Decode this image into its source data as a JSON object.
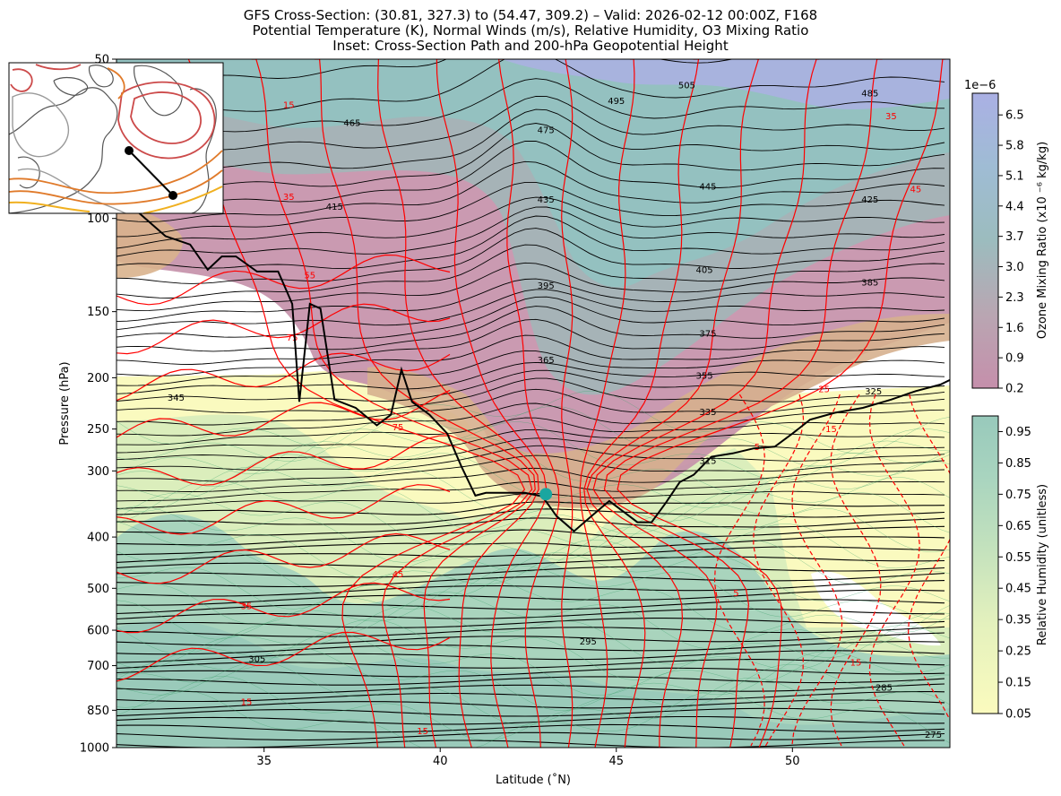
{
  "chart_data": {
    "type": "cross-section",
    "title_lines": [
      "GFS Cross-Section: (30.81, 327.3) to (54.47, 309.2) – Valid: 2026-02-12 00:00Z, F168",
      "Potential Temperature (K), Normal Winds (m/s), Relative Humidity, O3 Mixing Ratio",
      "Inset: Cross-Section Path and 200-hPa Geopotential Height"
    ],
    "xlabel": "Latitude (˚N)",
    "ylabel": "Pressure (hPa)",
    "xlim": [
      30.81,
      54.47
    ],
    "ylim": [
      1000,
      50
    ],
    "y_scale": "log",
    "x_ticks": [
      35,
      40,
      45,
      50
    ],
    "y_ticks": [
      1000,
      850,
      700,
      600,
      500,
      400,
      300,
      250,
      200,
      150,
      100,
      50
    ],
    "theta_labels": [
      {
        "value": "505",
        "lat": 47.0,
        "p": 56
      },
      {
        "value": "495",
        "lat": 45.0,
        "p": 60
      },
      {
        "value": "485",
        "lat": 52.2,
        "p": 58
      },
      {
        "value": "475",
        "lat": 43.0,
        "p": 68
      },
      {
        "value": "465",
        "lat": 37.5,
        "p": 66
      },
      {
        "value": "445",
        "lat": 47.6,
        "p": 87
      },
      {
        "value": "435",
        "lat": 43.0,
        "p": 92
      },
      {
        "value": "425",
        "lat": 52.2,
        "p": 92
      },
      {
        "value": "415",
        "lat": 37.0,
        "p": 95
      },
      {
        "value": "405",
        "lat": 47.5,
        "p": 125
      },
      {
        "value": "395",
        "lat": 43.0,
        "p": 134
      },
      {
        "value": "385",
        "lat": 52.2,
        "p": 132
      },
      {
        "value": "375",
        "lat": 47.6,
        "p": 165
      },
      {
        "value": "365",
        "lat": 43.0,
        "p": 185
      },
      {
        "value": "355",
        "lat": 47.5,
        "p": 198
      },
      {
        "value": "345",
        "lat": 32.5,
        "p": 218
      },
      {
        "value": "335",
        "lat": 47.6,
        "p": 232
      },
      {
        "value": "325",
        "lat": 52.3,
        "p": 212
      },
      {
        "value": "315",
        "lat": 47.6,
        "p": 287
      },
      {
        "value": "305",
        "lat": 34.8,
        "p": 680
      },
      {
        "value": "295",
        "lat": 44.2,
        "p": 630
      },
      {
        "value": "285",
        "lat": 52.6,
        "p": 770
      },
      {
        "value": "275",
        "lat": 54.0,
        "p": 945
      }
    ],
    "wind_labels": [
      {
        "value": "15",
        "lat": 35.7,
        "p": 61
      },
      {
        "value": "35",
        "lat": 35.7,
        "p": 91
      },
      {
        "value": "55",
        "lat": 36.3,
        "p": 128
      },
      {
        "value": "75",
        "lat": 35.8,
        "p": 168
      },
      {
        "value": "75",
        "lat": 38.8,
        "p": 248
      },
      {
        "value": "45",
        "lat": 38.8,
        "p": 470
      },
      {
        "value": "35",
        "lat": 34.5,
        "p": 540
      },
      {
        "value": "15",
        "lat": 34.5,
        "p": 820
      },
      {
        "value": "15",
        "lat": 39.5,
        "p": 930
      },
      {
        "value": "5",
        "lat": 48.4,
        "p": 510
      },
      {
        "value": "15",
        "lat": 51.8,
        "p": 690
      },
      {
        "value": "15",
        "lat": 51.1,
        "p": 250
      },
      {
        "value": "5",
        "lat": 49.0,
        "p": 270
      },
      {
        "value": "25",
        "lat": 50.9,
        "p": 210
      },
      {
        "value": "35",
        "lat": 52.8,
        "p": 64
      },
      {
        "value": "45",
        "lat": 53.5,
        "p": 88
      }
    ],
    "tropopause": {
      "lat": [
        30.9,
        31.4,
        32.2,
        32.9,
        33.4,
        33.8,
        34.2,
        34.8,
        35.4,
        35.8,
        36.0,
        36.3,
        36.6,
        37.0,
        37.6,
        38.2,
        38.6,
        38.9,
        39.2,
        39.7,
        40.2,
        40.6,
        41.0,
        41.3,
        41.8,
        42.4,
        42.9,
        43.3,
        43.8,
        44.3,
        44.8,
        45.2,
        45.6,
        46.0,
        46.4,
        46.8,
        47.2,
        47.7,
        48.3,
        48.9,
        49.5,
        50.0,
        50.5,
        51.2,
        52.0,
        52.8,
        53.5,
        54.2,
        54.47
      ],
      "p": [
        88,
        97,
        108,
        112,
        125,
        118,
        118,
        126,
        126,
        145,
        222,
        145,
        148,
        220,
        228,
        246,
        235,
        193,
        222,
        235,
        255,
        294,
        334,
        330,
        330,
        330,
        335,
        365,
        390,
        365,
        342,
        358,
        375,
        375,
        345,
        315,
        305,
        282,
        278,
        272,
        270,
        255,
        240,
        233,
        228,
        220,
        212,
        206,
        202
      ]
    },
    "marker": {
      "lat": 43.0,
      "p": 332
    },
    "colorbars": [
      {
        "label": "Ozone Mixing Ratio (x10 ⁻⁶ kg/kg)",
        "multiplier": "1e−6",
        "ticks": [
          "6.5",
          "5.8",
          "5.1",
          "4.4",
          "3.7",
          "3.0",
          "2.3",
          "1.6",
          "0.9",
          "0.2"
        ],
        "min": 0.2,
        "max": 7.0
      },
      {
        "label": "Relative Humidity (unitless)",
        "ticks": [
          "0.95",
          "0.85",
          "0.75",
          "0.65",
          "0.55",
          "0.45",
          "0.35",
          "0.25",
          "0.15",
          "0.05"
        ],
        "min": 0.05,
        "max": 1.0
      }
    ],
    "inset": {
      "path_start": "(30.81, 327.3)",
      "path_end": "(54.47, 309.2)",
      "level": "200-hPa Geopotential Height"
    }
  },
  "colors": {
    "theta": "#000000",
    "wind_positive": "#ff0000",
    "ozone_high": "#aab2e4",
    "ozone_mid": "#94c4c6",
    "ozone_low": "#c792aa",
    "rh_low": "#fafac0",
    "rh_high": "#98cab6",
    "marker": "#1aa6a0"
  }
}
